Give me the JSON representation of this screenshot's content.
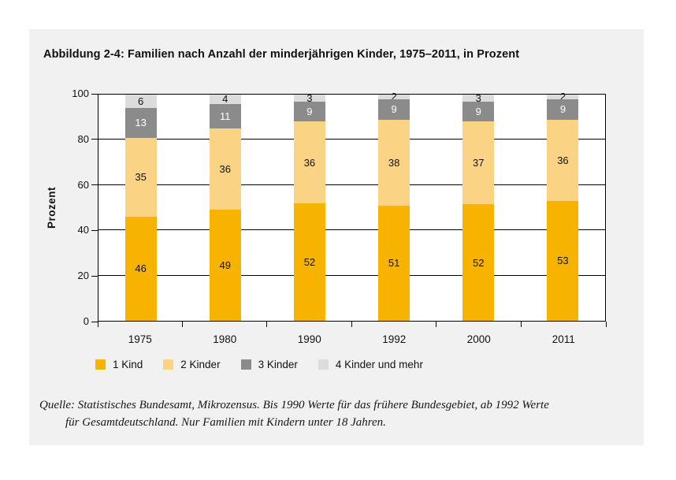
{
  "figure": {
    "title": "Abbildung 2-4: Familien nach Anzahl der minderjährigen Kinder, 1975–2011, in Prozent",
    "source_line1": "Quelle: Statistisches Bundesamt, Mikrozensus. Bis 1990 Werte für das frühere Bundesgebiet, ab 1992 Werte",
    "source_line2": "für Gesamtdeutschland. Nur Familien mit Kindern unter 18 Jahren."
  },
  "colors": {
    "panel_bg": "#f1f1f1",
    "plot_bg": "#ffffff",
    "axis": "#000000"
  },
  "chart_data": {
    "type": "bar",
    "stacked": true,
    "title": "Abbildung 2-4: Familien nach Anzahl der minderjährigen Kinder, 1975–2011, in Prozent",
    "categories": [
      "1975",
      "1980",
      "1990",
      "1992",
      "2000",
      "2011"
    ],
    "series": [
      {
        "name": "1 Kind",
        "color": "#f8b200",
        "label_color": "#111111",
        "values": [
          46,
          49,
          52,
          51,
          52,
          53
        ]
      },
      {
        "name": "2 Kinder",
        "color": "#fbd385",
        "label_color": "#111111",
        "values": [
          35,
          36,
          36,
          38,
          37,
          36
        ]
      },
      {
        "name": "3 Kinder",
        "color": "#8b8b8b",
        "label_color": "#ffffff",
        "values": [
          13,
          11,
          9,
          9,
          9,
          9
        ]
      },
      {
        "name": "4 Kinder und mehr",
        "color": "#dcdcdc",
        "label_color": "#111111",
        "values": [
          6,
          4,
          3,
          2,
          3,
          2
        ]
      }
    ],
    "xlabel": "",
    "ylabel": "Prozent",
    "ylim": [
      0,
      100
    ],
    "yticks": [
      0,
      20,
      40,
      60,
      80,
      100
    ],
    "grid": true,
    "legend_position": "bottom"
  }
}
